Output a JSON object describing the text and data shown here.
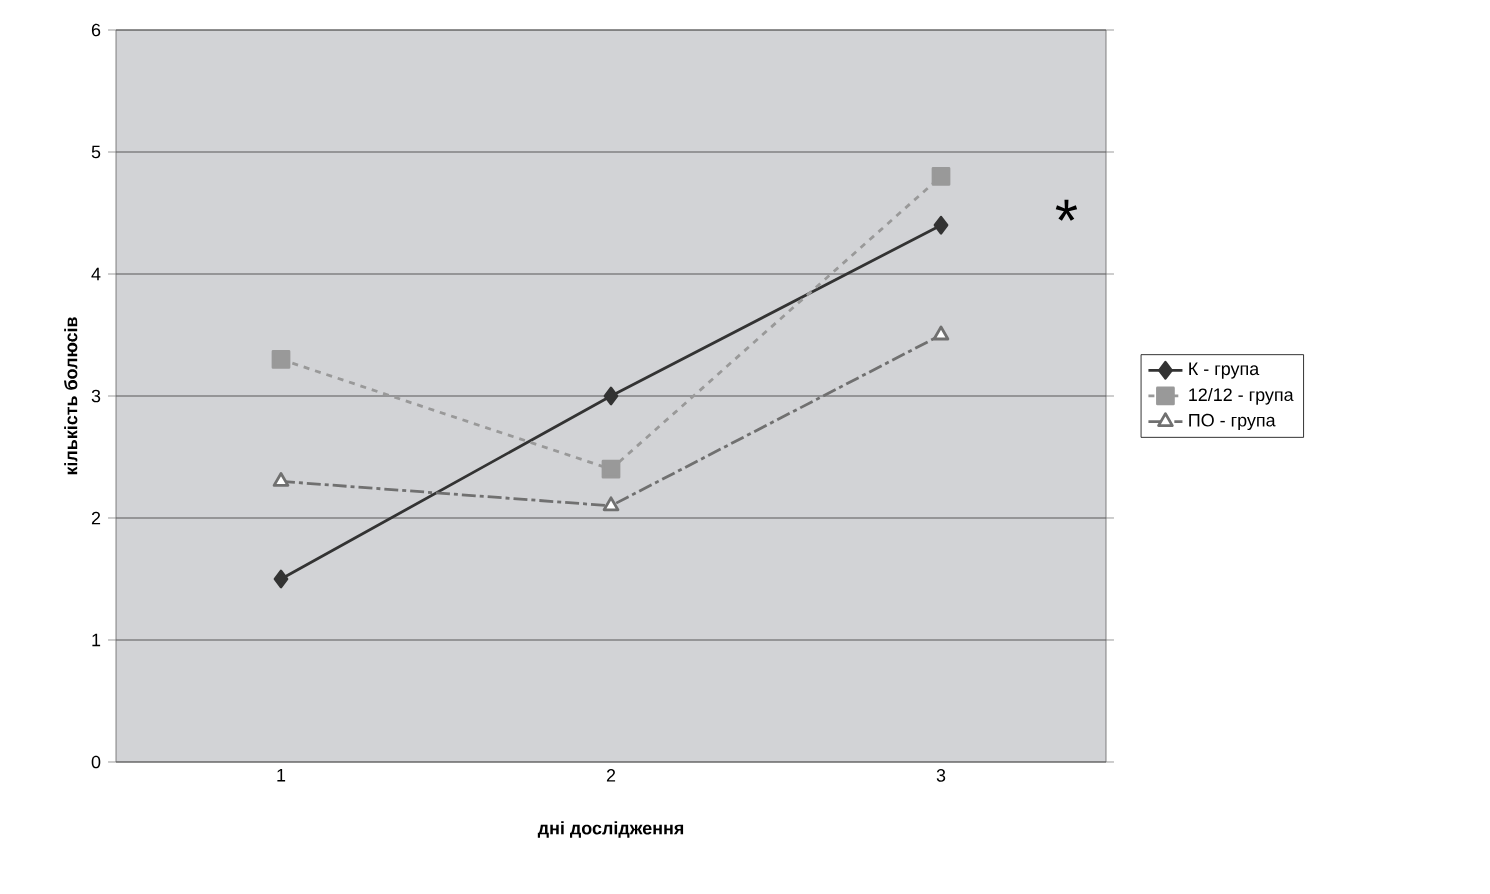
{
  "chart_data": {
    "type": "line",
    "xlabel": "дні дослідження",
    "ylabel": "кількість болюсів",
    "categories": [
      "1",
      "2",
      "3"
    ],
    "series": [
      {
        "name": "К - група",
        "color": "#333333",
        "values": [
          1.5,
          3.0,
          4.4
        ],
        "marker": "diamond",
        "line_style": "solid"
      },
      {
        "name": "12/12 - група",
        "color": "#999999",
        "values": [
          3.3,
          2.4,
          4.8
        ],
        "marker": "square",
        "line_style": "dotted"
      },
      {
        "name": "ПО - група",
        "color": "#707070",
        "values": [
          2.3,
          2.1,
          3.5
        ],
        "marker": "triangle",
        "line_style": "dashed"
      }
    ],
    "ylim": [
      0,
      6
    ],
    "yticks": [
      0,
      1,
      2,
      3,
      4,
      5,
      6
    ],
    "grid": "y",
    "legend": "right",
    "annotations": [
      "*"
    ]
  }
}
